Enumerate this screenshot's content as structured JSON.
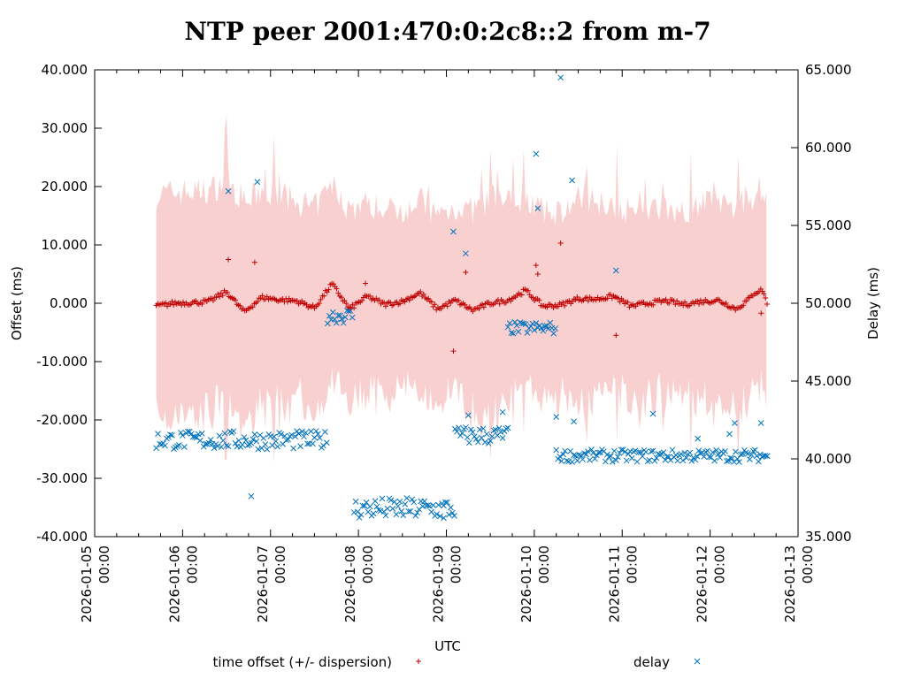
{
  "chart_data": {
    "type": "scatter",
    "title": "NTP peer 2001:470:0:2c8::2 from m-7",
    "xlabel": "UTC",
    "ylabel": "Offset (ms)",
    "y2label": "Delay (ms)",
    "xlim": [
      "2026-01-05 00:00",
      "2026-01-13 00:00"
    ],
    "ylim": [
      -40,
      40
    ],
    "y2lim": [
      35,
      65
    ],
    "x_ticks": [
      {
        "date": "2026-01-05",
        "time": "00:00"
      },
      {
        "date": "2026-01-06",
        "time": "00:00"
      },
      {
        "date": "2026-01-07",
        "time": "00:00"
      },
      {
        "date": "2026-01-08",
        "time": "00:00"
      },
      {
        "date": "2026-01-09",
        "time": "00:00"
      },
      {
        "date": "2026-01-10",
        "time": "00:00"
      },
      {
        "date": "2026-01-11",
        "time": "00:00"
      },
      {
        "date": "2026-01-12",
        "time": "00:00"
      },
      {
        "date": "2026-01-13",
        "time": "00:00"
      }
    ],
    "y_ticks": [
      "-40.000",
      "-30.000",
      "-20.000",
      "-10.000",
      "0.000",
      "10.000",
      "20.000",
      "30.000",
      "40.000"
    ],
    "y2_ticks": [
      "35.000",
      "40.000",
      "45.000",
      "50.000",
      "55.000",
      "60.000",
      "65.000"
    ],
    "legend": [
      {
        "label": "time offset (+/- dispersion)",
        "marker": "+",
        "color": "#c00000"
      },
      {
        "label": "delay",
        "marker": "x",
        "color": "#0072bd"
      }
    ],
    "legend_position": "bottom",
    "colors": {
      "offset": "#c00000",
      "delay": "#0072bd",
      "dispersion": "#f9d0d0"
    },
    "series": [
      {
        "name": "time offset (+/- dispersion)",
        "axis": "left",
        "x_days": [
          0.7,
          0.9,
          1.1,
          1.3,
          1.5,
          1.7,
          1.9,
          2.1,
          2.3,
          2.5,
          2.7,
          2.9,
          3.1,
          3.3,
          3.5,
          3.7,
          3.9,
          4.1,
          4.3,
          4.5,
          4.7,
          4.9,
          5.1,
          5.3,
          5.5,
          5.7,
          5.9,
          6.1,
          6.3,
          6.5,
          6.7,
          6.9,
          7.1,
          7.3,
          7.45,
          7.5,
          7.6,
          7.65
        ],
        "values": [
          -0.5,
          0.0,
          0.1,
          0.3,
          2.0,
          -1.5,
          1.0,
          0.6,
          0.4,
          -0.8,
          3.3,
          -1.0,
          1.2,
          -0.2,
          0.3,
          1.8,
          -1.0,
          0.5,
          -1.2,
          0.0,
          0.5,
          2.2,
          -0.5,
          -0.3,
          0.8,
          0.7,
          1.2,
          -0.5,
          0.0,
          0.4,
          -0.2,
          0.3,
          0.5,
          -1.0,
          0.8,
          1.8,
          2.3,
          -0.3
        ],
        "dispersion": [
          19,
          19,
          19,
          19,
          19,
          19,
          18,
          18,
          17,
          17,
          17,
          17,
          16,
          16,
          16,
          16,
          16,
          16,
          17,
          18,
          17,
          16,
          16,
          16,
          17,
          17,
          16,
          16,
          16,
          16,
          16,
          17,
          17,
          17,
          18,
          16,
          14,
          19
        ],
        "outliers": [
          {
            "x": 1.52,
            "y": 7.5
          },
          {
            "x": 1.82,
            "y": 7.0
          },
          {
            "x": 3.08,
            "y": 3.4
          },
          {
            "x": 4.08,
            "y": -8.2
          },
          {
            "x": 4.22,
            "y": 5.3
          },
          {
            "x": 5.02,
            "y": 6.5
          },
          {
            "x": 5.04,
            "y": 5.0
          },
          {
            "x": 5.3,
            "y": 10.3
          },
          {
            "x": 5.93,
            "y": -5.5
          },
          {
            "x": 7.58,
            "y": -1.7
          }
        ]
      },
      {
        "name": "delay",
        "axis": "right",
        "segments": [
          {
            "x": [
              0.7,
              2.65
            ],
            "mean": 41.2,
            "spread": 0.6
          },
          {
            "x": [
              2.65,
              2.95
            ],
            "mean": 49.2,
            "spread": 0.5
          },
          {
            "x": [
              2.95,
              4.1
            ],
            "mean": 36.8,
            "spread": 0.7
          },
          {
            "x": [
              4.1,
              4.7
            ],
            "mean": 41.5,
            "spread": 0.6
          },
          {
            "x": [
              4.7,
              5.25
            ],
            "mean": 48.4,
            "spread": 0.4
          },
          {
            "x": [
              5.25,
              7.65
            ],
            "mean": 40.2,
            "spread": 0.4
          }
        ],
        "outliers": [
          {
            "x": 1.52,
            "y": 57.2
          },
          {
            "x": 1.78,
            "y": 37.6
          },
          {
            "x": 1.85,
            "y": 57.8
          },
          {
            "x": 3.97,
            "y": 36.2
          },
          {
            "x": 4.08,
            "y": 54.6
          },
          {
            "x": 4.22,
            "y": 53.2
          },
          {
            "x": 4.25,
            "y": 42.8
          },
          {
            "x": 4.64,
            "y": 43.0
          },
          {
            "x": 5.02,
            "y": 59.6
          },
          {
            "x": 5.04,
            "y": 56.1
          },
          {
            "x": 5.25,
            "y": 42.7
          },
          {
            "x": 5.3,
            "y": 64.5
          },
          {
            "x": 5.43,
            "y": 57.9
          },
          {
            "x": 5.45,
            "y": 42.4
          },
          {
            "x": 5.93,
            "y": 52.1
          },
          {
            "x": 6.35,
            "y": 42.9
          },
          {
            "x": 6.86,
            "y": 41.3
          },
          {
            "x": 7.22,
            "y": 41.6
          },
          {
            "x": 7.28,
            "y": 42.3
          },
          {
            "x": 7.58,
            "y": 42.3
          }
        ]
      }
    ]
  }
}
